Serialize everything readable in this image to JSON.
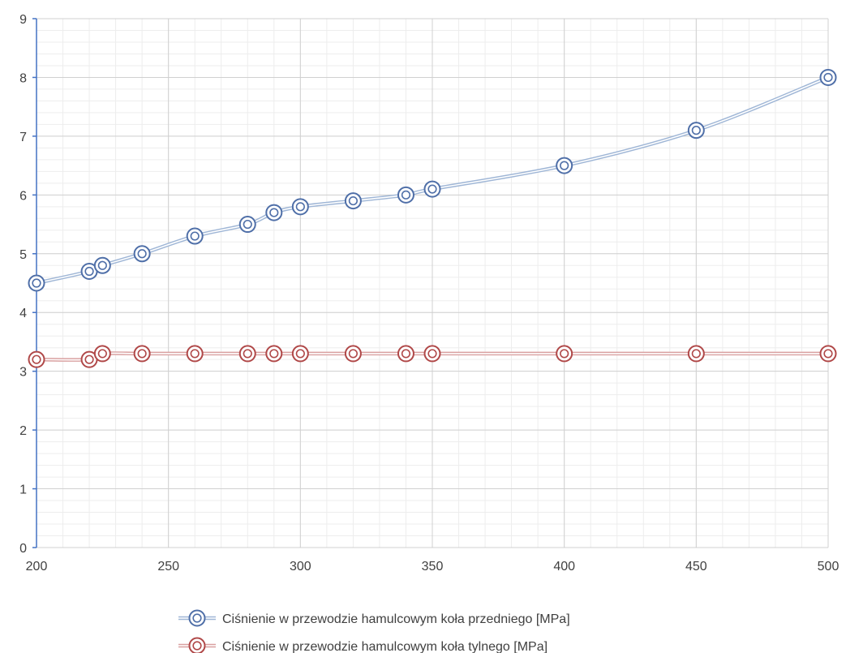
{
  "chart_data": {
    "type": "line",
    "xlim": [
      200,
      500
    ],
    "ylim": [
      0,
      9
    ],
    "x_ticks": [
      "200",
      "250",
      "300",
      "350",
      "400",
      "450",
      "500"
    ],
    "y_ticks": [
      "0",
      "1",
      "2",
      "3",
      "4",
      "5",
      "6",
      "7",
      "8",
      "9"
    ],
    "x_major_step": 50,
    "x_minor_step": 10,
    "y_major_step": 1,
    "y_minor_step": 0.2,
    "grid": true,
    "legend_position": "bottom",
    "series": [
      {
        "name": "Ciśnienie w przewodzie hamulcowym koła przedniego [MPa]",
        "color": "#4f6fa8",
        "line_color": "#9fb6d6",
        "x": [
          200,
          220,
          225,
          240,
          260,
          280,
          290,
          300,
          320,
          340,
          350,
          400,
          450,
          500
        ],
        "y": [
          4.5,
          4.7,
          4.8,
          5.0,
          5.3,
          5.5,
          5.7,
          5.8,
          5.9,
          6.0,
          6.1,
          6.5,
          7.1,
          8.0
        ]
      },
      {
        "name": "Ciśnienie w przewodzie hamulcowym koła tylnego [MPa]",
        "color": "#b04848",
        "line_color": "#d9a0a0",
        "x": [
          200,
          220,
          225,
          240,
          260,
          280,
          290,
          300,
          320,
          340,
          350,
          400,
          450,
          500
        ],
        "y": [
          3.2,
          3.2,
          3.3,
          3.3,
          3.3,
          3.3,
          3.3,
          3.3,
          3.3,
          3.3,
          3.3,
          3.3,
          3.3,
          3.3
        ]
      }
    ]
  }
}
